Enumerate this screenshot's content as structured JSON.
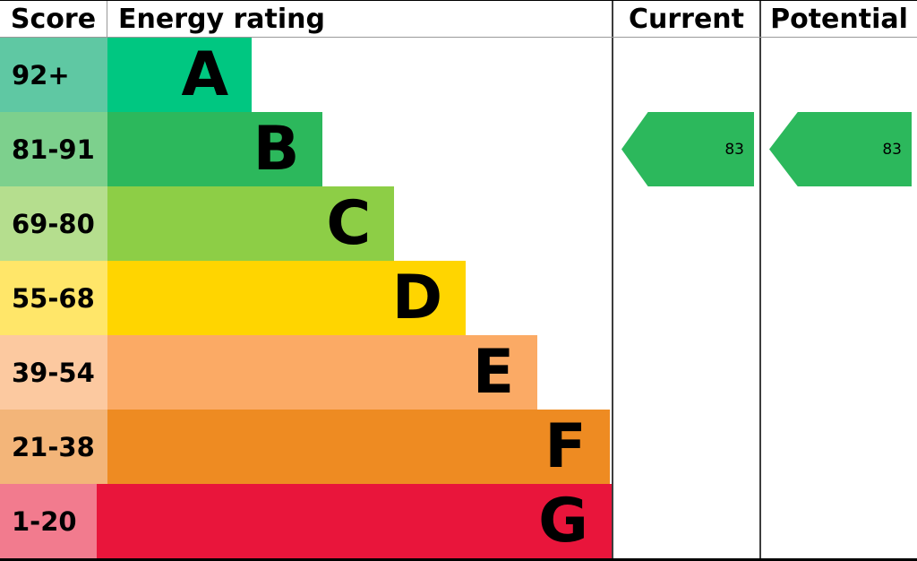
{
  "header": {
    "score": "Score",
    "rating": "Energy rating",
    "current": "Current",
    "potential": "Potential"
  },
  "bands": [
    {
      "letter": "A",
      "score": "92+",
      "color": "#00c781",
      "light_color": "#5fc8a3",
      "width_pct": 23.6
    },
    {
      "letter": "B",
      "score": "81-91",
      "color": "#2cb85c",
      "light_color": "#7dd08d",
      "width_pct": 35.2
    },
    {
      "letter": "C",
      "score": "69-80",
      "color": "#8dce46",
      "light_color": "#b5de8e",
      "width_pct": 46.9
    },
    {
      "letter": "D",
      "score": "55-68",
      "color": "#ffd500",
      "light_color": "#ffe669",
      "width_pct": 58.6
    },
    {
      "letter": "E",
      "score": "39-54",
      "color": "#fbaa65",
      "light_color": "#fcc9a0",
      "width_pct": 70.3
    },
    {
      "letter": "F",
      "score": "21-38",
      "color": "#ee8b22",
      "light_color": "#f3b579",
      "width_pct": 82.1
    },
    {
      "letter": "G",
      "score": "1-20",
      "color": "#e9153b",
      "light_color": "#f27b8e",
      "width_pct": 93.8
    }
  ],
  "current": {
    "value": "83",
    "band": "B",
    "band_index": 1,
    "color": "#2cb85c"
  },
  "potential": {
    "value": "83",
    "band": "B",
    "band_index": 1,
    "color": "#2cb85c"
  },
  "chart_data": {
    "type": "bar",
    "title": "Energy rating",
    "categories": [
      "A",
      "B",
      "C",
      "D",
      "E",
      "F",
      "G"
    ],
    "score_ranges": [
      "92+",
      "81-91",
      "69-80",
      "55-68",
      "39-54",
      "21-38",
      "1-20"
    ],
    "bar_widths_pct": [
      23.6,
      35.2,
      46.9,
      58.6,
      70.3,
      82.1,
      93.8
    ],
    "band_colors": [
      "#00c781",
      "#2cb85c",
      "#8dce46",
      "#ffd500",
      "#fbaa65",
      "#ee8b22",
      "#e9153b"
    ],
    "legend_position": "none",
    "markers": [
      {
        "name": "Current",
        "value": 83,
        "band": "B"
      },
      {
        "name": "Potential",
        "value": 83,
        "band": "B"
      }
    ]
  }
}
